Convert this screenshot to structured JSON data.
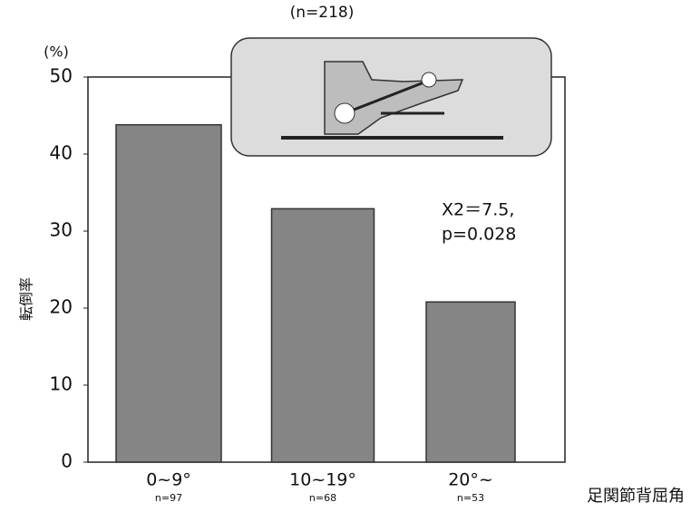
{
  "chart_data": {
    "type": "bar",
    "subtitle": "(n=218)",
    "y_unit": "(%)",
    "y_label": "転倒率",
    "x_label": "足関節背屈角",
    "categories": [
      "0~9°",
      "10~19°",
      "20°~"
    ],
    "category_notes": [
      "n=97",
      "n=68",
      "n=53"
    ],
    "values": [
      43.8,
      32.9,
      20.8
    ],
    "color": "#858585",
    "ylim": [
      0,
      50
    ],
    "yticks": [
      0,
      10,
      20,
      30,
      40,
      50
    ],
    "annotation": [
      "X2＝7.5,",
      "p=0.028"
    ]
  }
}
